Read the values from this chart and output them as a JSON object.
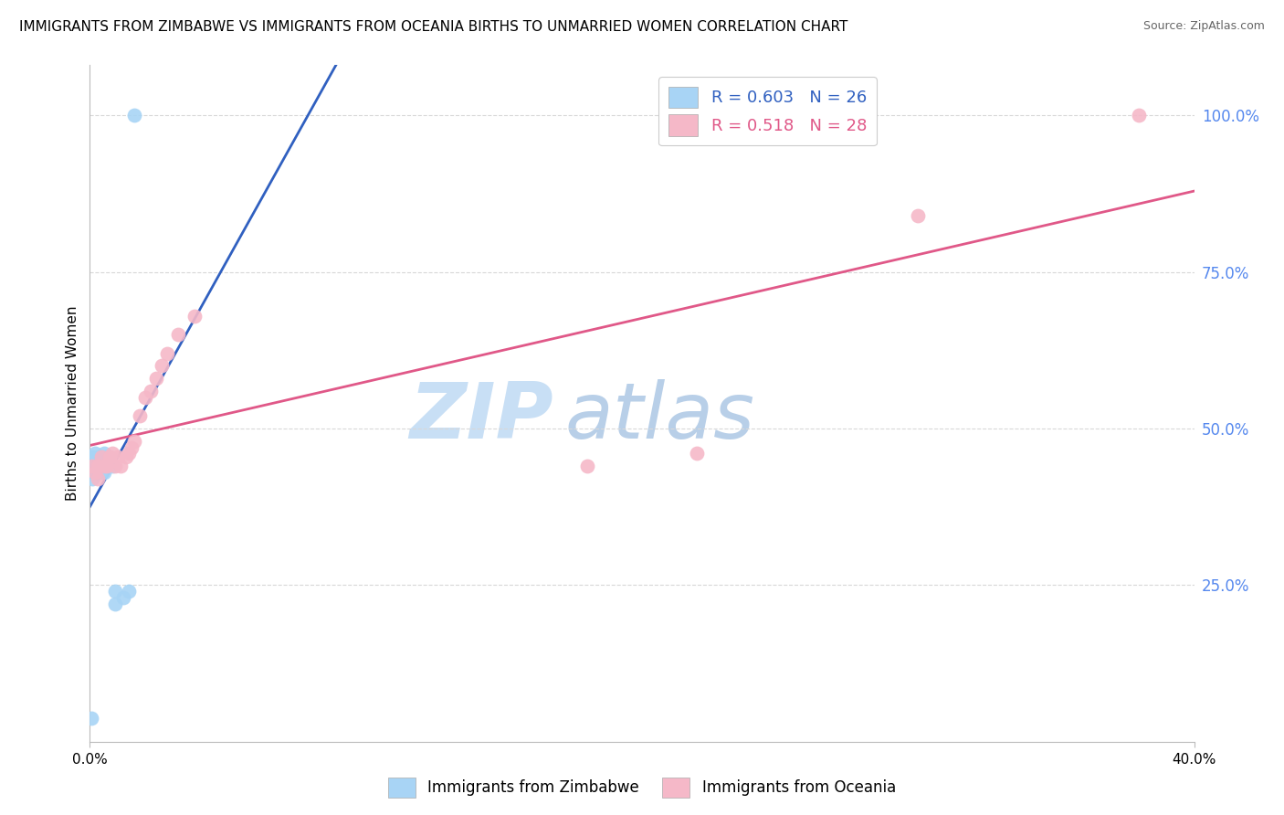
{
  "title": "IMMIGRANTS FROM ZIMBABWE VS IMMIGRANTS FROM OCEANIA BIRTHS TO UNMARRIED WOMEN CORRELATION CHART",
  "source": "Source: ZipAtlas.com",
  "ylabel": "Births to Unmarried Women",
  "right_yticks": [
    "25.0%",
    "50.0%",
    "75.0%",
    "100.0%"
  ],
  "right_ytick_vals": [
    0.25,
    0.5,
    0.75,
    1.0
  ],
  "xlim": [
    0.0,
    0.4
  ],
  "ylim": [
    0.0,
    1.08
  ],
  "watermark_zip": "ZIP",
  "watermark_atlas": "atlas",
  "legend_r1": "R = 0.603",
  "legend_n1": "N = 26",
  "legend_r2": "R = 0.518",
  "legend_n2": "N = 28",
  "zimbabwe_x": [
    0.0005,
    0.001,
    0.001,
    0.001,
    0.002,
    0.002,
    0.002,
    0.003,
    0.003,
    0.003,
    0.004,
    0.004,
    0.004,
    0.005,
    0.005,
    0.005,
    0.005,
    0.006,
    0.006,
    0.007,
    0.008,
    0.009,
    0.009,
    0.012,
    0.014,
    0.016
  ],
  "zimbabwe_y": [
    0.038,
    0.42,
    0.44,
    0.455,
    0.43,
    0.44,
    0.46,
    0.43,
    0.44,
    0.455,
    0.43,
    0.44,
    0.455,
    0.43,
    0.44,
    0.455,
    0.46,
    0.44,
    0.455,
    0.455,
    0.44,
    0.22,
    0.24,
    0.23,
    0.24,
    1.0
  ],
  "oceania_x": [
    0.001,
    0.002,
    0.003,
    0.003,
    0.004,
    0.005,
    0.006,
    0.007,
    0.008,
    0.009,
    0.01,
    0.011,
    0.013,
    0.014,
    0.015,
    0.016,
    0.018,
    0.02,
    0.022,
    0.024,
    0.026,
    0.028,
    0.032,
    0.038,
    0.18,
    0.22,
    0.3,
    0.38
  ],
  "oceania_y": [
    0.44,
    0.43,
    0.42,
    0.44,
    0.455,
    0.44,
    0.44,
    0.455,
    0.46,
    0.44,
    0.455,
    0.44,
    0.455,
    0.46,
    0.47,
    0.48,
    0.52,
    0.55,
    0.56,
    0.58,
    0.6,
    0.62,
    0.65,
    0.68,
    0.44,
    0.46,
    0.84,
    1.0
  ],
  "blue_dot_color": "#a8d4f5",
  "pink_dot_color": "#f5b8c8",
  "blue_line_color": "#3060c0",
  "pink_line_color": "#e05888",
  "bg_color": "#ffffff",
  "grid_color": "#d8d8d8",
  "right_tick_color": "#5588ee",
  "title_fontsize": 11,
  "source_fontsize": 9,
  "ylabel_fontsize": 11,
  "xtick_fontsize": 11,
  "watermark_zip_color": "#c8dff5",
  "watermark_atlas_color": "#b8cfe8",
  "watermark_fontsize": 62
}
